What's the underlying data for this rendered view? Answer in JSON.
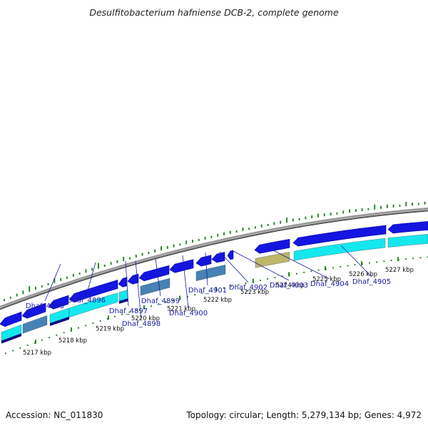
{
  "title": "Desulfitobacterium hafniense DCB-2, complete genome",
  "footer": {
    "accession": "Accession: NC_011830",
    "summary": "Topology: circular; Length: 5,279,134 bp; Genes: 4,972"
  },
  "ticks": [
    "5217 kbp",
    "5218 kbp",
    "5219 kbp",
    "5220 kbp",
    "5221 kbp",
    "5222 kbp",
    "5223 kbp",
    "5224 kbp",
    "5225 kbp",
    "5226 kbp",
    "5227 kbp"
  ],
  "gene_labels": [
    "Dhaf_4895",
    "Dhaf_4896",
    "Dhaf_4897",
    "Dhaf_4898",
    "Dhaf_4899",
    "Dhaf_4900",
    "Dhaf_4901",
    "Dhaf_4902",
    "Dhaf_4903",
    "Dhaf_4904",
    "Dhaf_4905"
  ],
  "colors": {
    "gene": "#1515e0",
    "gene_dark": "#0000a0",
    "cog_cyan": "#14e8ee",
    "cog_steel": "#4682b4",
    "cog_olive": "#bdb76b",
    "cog_navy": "#0a0a80",
    "backbone": "#7a7a7a",
    "gc": "#2a8a2a",
    "label": "#1a1aa8"
  }
}
